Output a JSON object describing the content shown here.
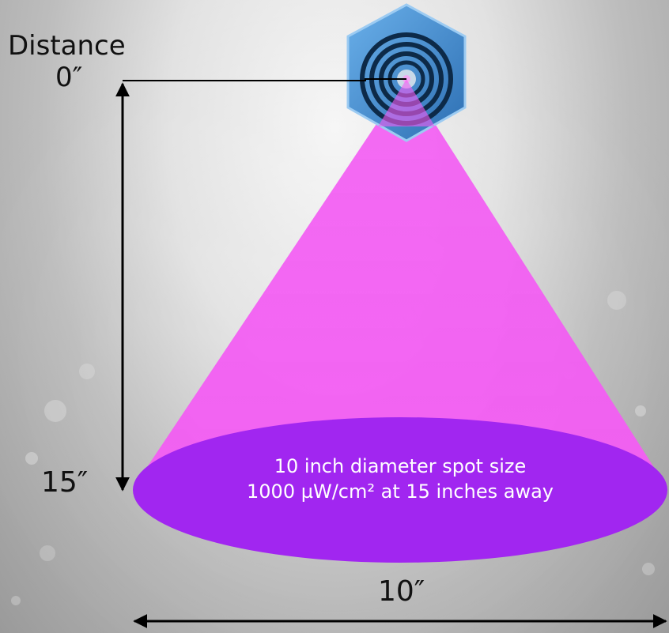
{
  "diagram": {
    "distance_heading": "Distance",
    "distance_start": "0″",
    "distance_end": "15″",
    "width_label": "10″",
    "spot_text_line1": "10 inch diameter spot size",
    "spot_text_line2": "1000 µW/cm² at 15 inches away"
  },
  "icons": {
    "light_head": "hexagonal-uv-lamp-icon"
  },
  "colors": {
    "beam": "#f35cf3",
    "spot": "#a126f0",
    "lamp_body": "#3f83c6",
    "lamp_ring": "#0d2a48",
    "arrows": "#000000"
  }
}
